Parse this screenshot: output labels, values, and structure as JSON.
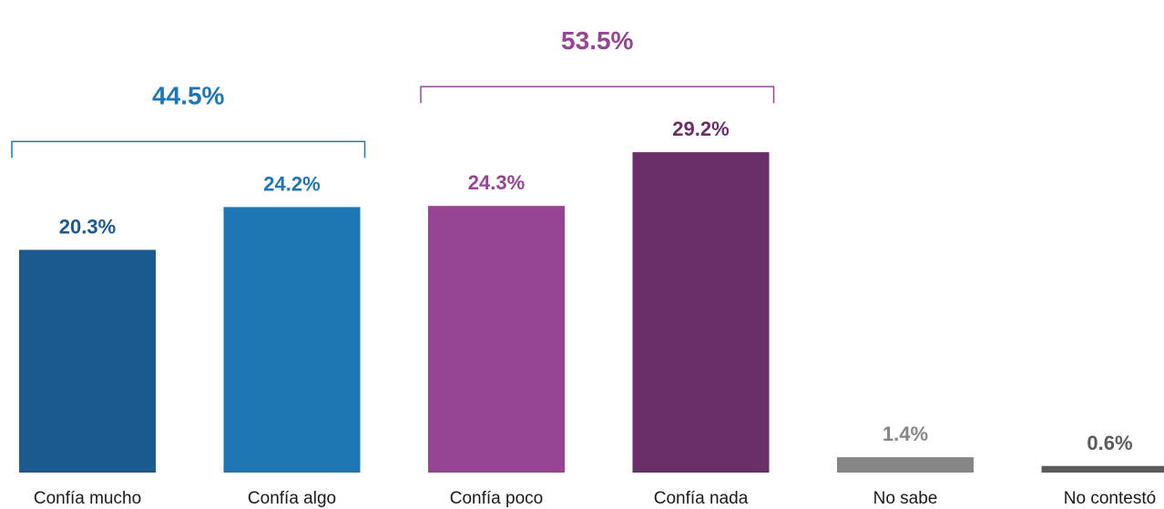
{
  "chart_data": {
    "type": "bar",
    "categories": [
      "Confía mucho",
      "Confía algo",
      "Confía poco",
      "Confía nada",
      "No sabe",
      "No contestó"
    ],
    "values": [
      20.3,
      24.2,
      24.3,
      29.2,
      1.4,
      0.6
    ],
    "value_labels": [
      "20.3%",
      "24.2%",
      "24.3%",
      "29.2%",
      "1.4%",
      "0.6%"
    ],
    "bar_colors": [
      "#1b5a8e",
      "#1f76b4",
      "#974495",
      "#6a2e68",
      "#868686",
      "#5b5b5b"
    ],
    "label_colors": [
      "#1b5a8e",
      "#1f76b4",
      "#974495",
      "#6a2e68",
      "#868686",
      "#5b5b5b"
    ],
    "ylim": [
      0,
      33
    ],
    "grid": false,
    "legend": "none",
    "groups": [
      {
        "label": "44.5%",
        "value": 44.5,
        "from": 0,
        "to": 1,
        "color": "#1f76b4"
      },
      {
        "label": "53.5%",
        "value": 53.5,
        "from": 2,
        "to": 3,
        "color": "#974495"
      }
    ]
  }
}
